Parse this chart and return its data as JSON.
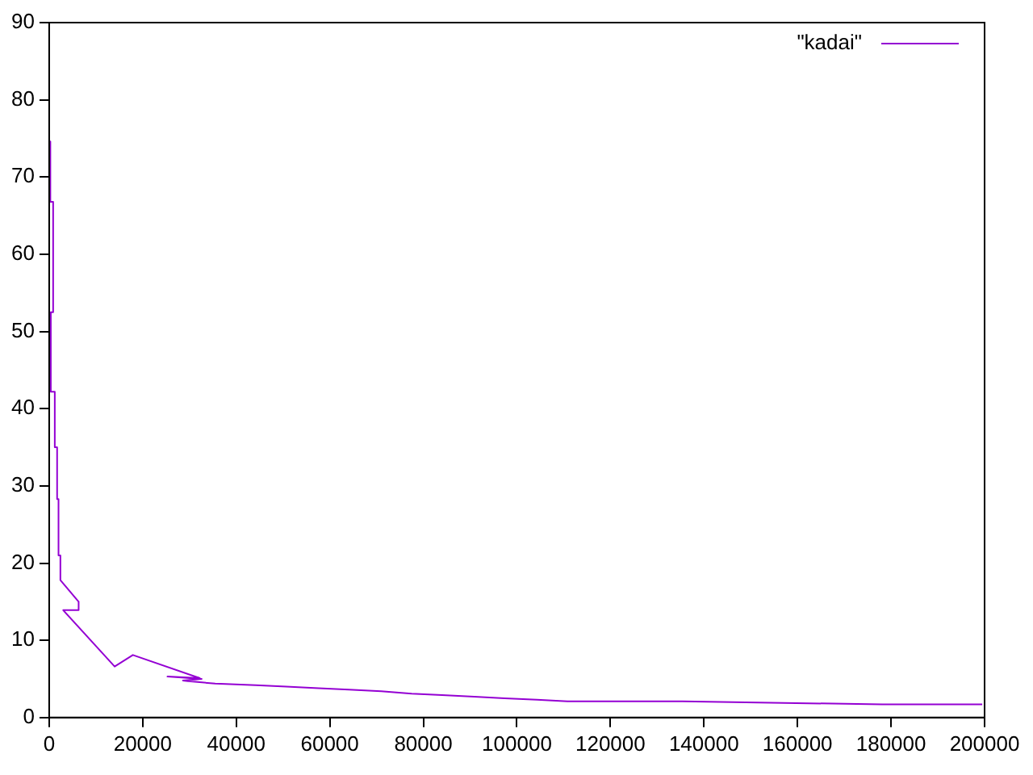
{
  "chart_data": {
    "type": "line",
    "xlim": [
      0,
      200000
    ],
    "ylim": [
      0,
      90
    ],
    "xticks": [
      0,
      20000,
      40000,
      60000,
      80000,
      100000,
      120000,
      140000,
      160000,
      180000,
      200000
    ],
    "yticks": [
      0,
      10,
      20,
      30,
      40,
      50,
      60,
      70,
      80,
      90
    ],
    "grid": false,
    "legend": "top right",
    "marker": "none",
    "line_style": "solid",
    "series": [
      {
        "name": "\"kadai\"",
        "color": "#9400d3",
        "x": [
          250,
          250,
          850,
          850,
          350,
          350,
          1200,
          1200,
          1700,
          1700,
          2000,
          2000,
          2400,
          2400,
          6300,
          6300,
          3000,
          14000,
          17900,
          32200,
          25300,
          32600,
          28600,
          29700,
          35500,
          44200,
          50700,
          57600,
          64100,
          71000,
          77500,
          84000,
          90900,
          97400,
          104300,
          110800,
          135400,
          178100,
          199500
        ],
        "values": [
          74.6,
          66.8,
          66.8,
          52.5,
          52.5,
          42.2,
          42.2,
          35,
          35,
          28.3,
          28.3,
          21,
          21,
          17.8,
          15,
          13.9,
          13.9,
          6.6,
          8.1,
          5.1,
          5.3,
          5.0,
          4.8,
          4.7,
          4.4,
          4.2,
          4.0,
          3.8,
          3.6,
          3.4,
          3.1,
          2.9,
          2.7,
          2.5,
          2.3,
          2.1,
          2.1,
          1.7,
          1.7
        ]
      }
    ]
  }
}
